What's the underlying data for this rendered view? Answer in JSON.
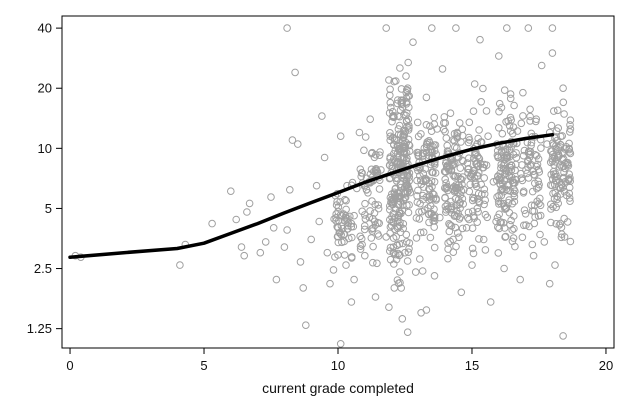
{
  "chart_data": {
    "type": "scatter",
    "title": "",
    "xlabel": "current grade completed",
    "ylabel": "",
    "xlim": [
      -0.3,
      20.3
    ],
    "ylim": [
      1.0,
      46.0
    ],
    "y_scale": "log",
    "x_ticks": [
      0,
      5,
      10,
      15,
      20
    ],
    "x_tick_labels": [
      "0",
      "5",
      "10",
      "15",
      "20"
    ],
    "y_ticks": [
      1.25,
      2.5,
      5,
      10,
      20,
      40
    ],
    "y_tick_labels": [
      "1.25",
      "2.5",
      "5",
      "10",
      "20",
      "40"
    ],
    "grid": false,
    "legend": "none",
    "colors": {
      "points": "#a0a0a0",
      "fit_line": "#000000",
      "axis": "#000000"
    },
    "scatter_points": [
      [
        0.2,
        2.9
      ],
      [
        0.4,
        2.85
      ],
      [
        4.3,
        3.3
      ],
      [
        4.1,
        2.6
      ],
      [
        5.3,
        4.2
      ],
      [
        6.0,
        6.1
      ],
      [
        6.2,
        4.4
      ],
      [
        6.4,
        3.2
      ],
      [
        6.5,
        2.9
      ],
      [
        6.6,
        4.8
      ],
      [
        6.7,
        5.3
      ],
      [
        7.1,
        3.0
      ],
      [
        7.3,
        3.4
      ],
      [
        7.5,
        5.7
      ],
      [
        7.6,
        4.0
      ],
      [
        7.7,
        2.2
      ],
      [
        8.0,
        3.2
      ],
      [
        8.1,
        3.9
      ],
      [
        8.2,
        6.2
      ],
      [
        8.3,
        11.0
      ],
      [
        8.4,
        24.0
      ],
      [
        8.5,
        10.5
      ],
      [
        8.6,
        2.7
      ],
      [
        8.7,
        2.0
      ],
      [
        8.8,
        1.3
      ],
      [
        9.0,
        3.5
      ],
      [
        9.2,
        6.5
      ],
      [
        9.3,
        4.3
      ],
      [
        9.4,
        14.5
      ],
      [
        9.5,
        9.0
      ],
      [
        9.6,
        3.0
      ],
      [
        9.7,
        2.1
      ],
      [
        9.9,
        5.8
      ],
      [
        10.0,
        4.0
      ],
      [
        10.1,
        11.5
      ],
      [
        10.3,
        2.6
      ],
      [
        10.5,
        1.7
      ],
      [
        10.6,
        4.6
      ],
      [
        10.7,
        6.3
      ],
      [
        10.8,
        12.0
      ],
      [
        10.9,
        3.3
      ],
      [
        8.1,
        40.0
      ],
      [
        10.1,
        1.05
      ],
      [
        10.6,
        2.2
      ],
      [
        11.0,
        2.9
      ],
      [
        11.2,
        14.0
      ],
      [
        11.4,
        1.8
      ],
      [
        11.5,
        5.2
      ],
      [
        11.6,
        7.8
      ],
      [
        11.8,
        3.6
      ],
      [
        11.9,
        1.6
      ],
      [
        11.8,
        40.0
      ],
      [
        11.9,
        22.0
      ],
      [
        12.0,
        4.1
      ],
      [
        12.1,
        2.0
      ],
      [
        12.2,
        8.5
      ],
      [
        12.3,
        13.0
      ],
      [
        12.4,
        1.4
      ],
      [
        12.5,
        3.0
      ],
      [
        12.6,
        20.0
      ],
      [
        12.7,
        6.0
      ],
      [
        12.8,
        34.0
      ],
      [
        12.9,
        2.4
      ],
      [
        13.0,
        9.5
      ],
      [
        13.1,
        1.5
      ],
      [
        13.2,
        3.8
      ],
      [
        13.3,
        18.0
      ],
      [
        13.4,
        5.5
      ],
      [
        13.5,
        40.0
      ],
      [
        13.6,
        2.3
      ],
      [
        13.7,
        12.5
      ],
      [
        13.8,
        4.5
      ],
      [
        13.9,
        25.0
      ],
      [
        14.0,
        7.0
      ],
      [
        14.1,
        2.8
      ],
      [
        14.2,
        15.0
      ],
      [
        14.3,
        3.5
      ],
      [
        14.4,
        40.0
      ],
      [
        14.5,
        9.0
      ],
      [
        14.6,
        1.9
      ],
      [
        14.7,
        6.2
      ],
      [
        14.8,
        4.0
      ],
      [
        14.9,
        13.5
      ],
      [
        15.0,
        2.6
      ],
      [
        15.1,
        21.0
      ],
      [
        15.2,
        5.0
      ],
      [
        15.3,
        35.0
      ],
      [
        15.4,
        8.0
      ],
      [
        15.5,
        3.1
      ],
      [
        15.6,
        11.5
      ],
      [
        15.7,
        1.7
      ],
      [
        15.8,
        6.8
      ],
      [
        15.9,
        4.3
      ],
      [
        16.0,
        29.0
      ],
      [
        16.1,
        16.0
      ],
      [
        16.2,
        2.5
      ],
      [
        16.3,
        40.0
      ],
      [
        16.4,
        9.8
      ],
      [
        16.5,
        3.9
      ],
      [
        16.6,
        6.1
      ],
      [
        16.7,
        12.2
      ],
      [
        16.8,
        2.2
      ],
      [
        16.9,
        19.0
      ],
      [
        17.0,
        4.7
      ],
      [
        17.1,
        40.0
      ],
      [
        17.2,
        8.3
      ],
      [
        17.3,
        2.9
      ],
      [
        17.4,
        14.0
      ],
      [
        17.5,
        5.3
      ],
      [
        17.6,
        26.0
      ],
      [
        17.7,
        3.4
      ],
      [
        17.8,
        10.5
      ],
      [
        17.9,
        2.1
      ],
      [
        18.0,
        40.0
      ],
      [
        18.1,
        7.2
      ],
      [
        18.2,
        15.5
      ],
      [
        18.3,
        4.2
      ],
      [
        18.4,
        1.15
      ],
      [
        18.0,
        30.0
      ],
      [
        17.9,
        12.0
      ],
      [
        18.2,
        9.0
      ],
      [
        18.3,
        5.9
      ],
      [
        18.1,
        2.6
      ],
      [
        18.4,
        20.0
      ],
      [
        12.6,
        1.2
      ],
      [
        13.3,
        1.55
      ]
    ],
    "dense_columns": [
      {
        "x": 10.2,
        "y_min": 2.2,
        "y_max": 7.5,
        "n": 55
      },
      {
        "x": 11.2,
        "y_min": 2.4,
        "y_max": 13.0,
        "n": 70
      },
      {
        "x": 12.3,
        "y_min": 1.6,
        "y_max": 37.0,
        "n": 260
      },
      {
        "x": 13.3,
        "y_min": 2.0,
        "y_max": 22.0,
        "n": 110
      },
      {
        "x": 14.3,
        "y_min": 2.3,
        "y_max": 20.0,
        "n": 120
      },
      {
        "x": 15.2,
        "y_min": 2.3,
        "y_max": 22.0,
        "n": 80
      },
      {
        "x": 16.3,
        "y_min": 2.3,
        "y_max": 25.0,
        "n": 130
      },
      {
        "x": 17.2,
        "y_min": 2.4,
        "y_max": 22.0,
        "n": 70
      },
      {
        "x": 18.3,
        "y_min": 2.5,
        "y_max": 24.0,
        "n": 110
      }
    ],
    "fit_line": {
      "x": [
        0,
        2,
        4,
        5,
        6,
        7,
        8,
        9,
        10,
        11,
        12,
        13,
        14,
        15,
        16,
        17,
        18
      ],
      "y": [
        2.85,
        3.0,
        3.15,
        3.35,
        3.75,
        4.2,
        4.75,
        5.35,
        6.0,
        6.75,
        7.5,
        8.3,
        9.1,
        9.9,
        10.6,
        11.2,
        11.7
      ]
    }
  }
}
